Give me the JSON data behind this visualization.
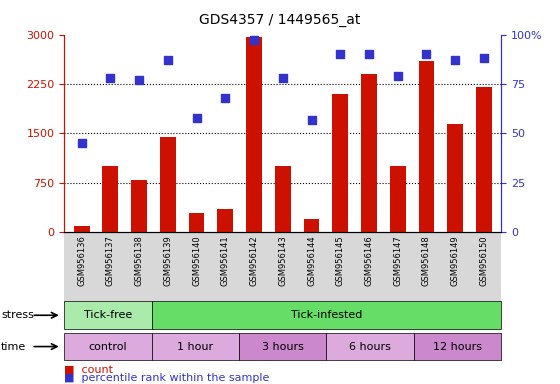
{
  "title": "GDS4357 / 1449565_at",
  "categories": [
    "GSM956136",
    "GSM956137",
    "GSM956138",
    "GSM956139",
    "GSM956140",
    "GSM956141",
    "GSM956142",
    "GSM956143",
    "GSM956144",
    "GSM956145",
    "GSM956146",
    "GSM956147",
    "GSM956148",
    "GSM956149",
    "GSM956150"
  ],
  "counts": [
    100,
    1000,
    800,
    1450,
    300,
    350,
    2970,
    1000,
    200,
    2100,
    2400,
    1000,
    2600,
    1650,
    2200
  ],
  "percentiles": [
    45,
    78,
    77,
    87,
    58,
    68,
    97,
    78,
    57,
    90,
    90,
    79,
    90,
    87,
    88
  ],
  "bar_color": "#cc1100",
  "dot_color": "#3333cc",
  "ylim_left": [
    0,
    3000
  ],
  "ylim_right": [
    0,
    100
  ],
  "yticks_left": [
    0,
    750,
    1500,
    2250,
    3000
  ],
  "yticks_right": [
    0,
    25,
    50,
    75,
    100
  ],
  "grid_lines": [
    750,
    1500,
    2250
  ],
  "stress_segments": [
    {
      "text": "Tick-free",
      "start": 0,
      "end": 3,
      "color": "#aaeaaa"
    },
    {
      "text": "Tick-infested",
      "start": 3,
      "end": 15,
      "color": "#66dd66"
    }
  ],
  "time_segments": [
    {
      "text": "control",
      "start": 0,
      "end": 3,
      "color": "#ddaadd"
    },
    {
      "text": "1 hour",
      "start": 3,
      "end": 6,
      "color": "#ddaadd"
    },
    {
      "text": "3 hours",
      "start": 6,
      "end": 9,
      "color": "#cc88cc"
    },
    {
      "text": "6 hours",
      "start": 9,
      "end": 12,
      "color": "#ddaadd"
    },
    {
      "text": "12 hours",
      "start": 12,
      "end": 15,
      "color": "#cc88cc"
    }
  ],
  "stress_row_label": "stress",
  "time_row_label": "time",
  "legend_count_label": "count",
  "legend_percentile_label": "percentile rank within the sample",
  "plot_bg_color": "#ffffff",
  "tick_bg_color": "#dddddd"
}
